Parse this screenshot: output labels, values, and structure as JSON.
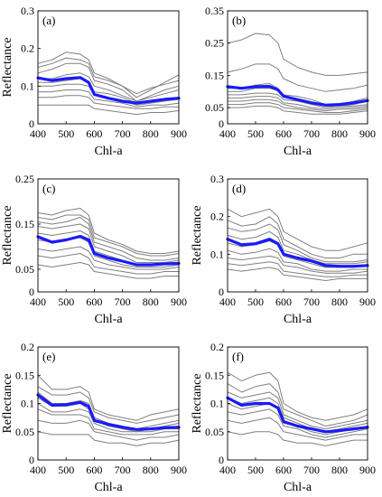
{
  "colors": {
    "individual": "#808080",
    "mean": "#1a1aff",
    "axes": "#000000"
  },
  "chart_data": [
    {
      "type": "line",
      "panel": "(a)",
      "xlabel": "Chl-a",
      "ylabel": "Reflectance",
      "xlim": [
        400,
        900
      ],
      "ylim": [
        0,
        0.3
      ],
      "xticks": [
        400,
        500,
        600,
        700,
        800,
        900
      ],
      "yticks": [
        0,
        0.1,
        0.2,
        0.3
      ],
      "ytick_labels": [
        "0",
        "0.1",
        "0.2",
        "0.3"
      ],
      "x": [
        400,
        450,
        500,
        550,
        580,
        600,
        650,
        700,
        750,
        800,
        850,
        900
      ],
      "gray_series": [
        [
          0.16,
          0.17,
          0.19,
          0.185,
          0.17,
          0.135,
          0.12,
          0.1,
          0.07,
          0.09,
          0.11,
          0.13
        ],
        [
          0.15,
          0.16,
          0.175,
          0.17,
          0.16,
          0.125,
          0.115,
          0.1,
          0.08,
          0.095,
          0.105,
          0.115
        ],
        [
          0.135,
          0.145,
          0.16,
          0.16,
          0.15,
          0.115,
          0.105,
          0.09,
          0.06,
          0.075,
          0.09,
          0.1
        ],
        [
          0.12,
          0.12,
          0.13,
          0.135,
          0.125,
          0.1,
          0.09,
          0.075,
          0.06,
          0.07,
          0.08,
          0.09
        ],
        [
          0.11,
          0.11,
          0.115,
          0.12,
          0.11,
          0.085,
          0.08,
          0.07,
          0.055,
          0.06,
          0.065,
          0.07
        ],
        [
          0.1,
          0.1,
          0.105,
          0.105,
          0.1,
          0.075,
          0.07,
          0.06,
          0.05,
          0.055,
          0.06,
          0.065
        ],
        [
          0.085,
          0.085,
          0.09,
          0.09,
          0.085,
          0.065,
          0.06,
          0.055,
          0.045,
          0.05,
          0.05,
          0.055
        ],
        [
          0.07,
          0.07,
          0.075,
          0.075,
          0.07,
          0.055,
          0.05,
          0.045,
          0.04,
          0.04,
          0.045,
          0.045
        ],
        [
          0.05,
          0.05,
          0.05,
          0.05,
          0.05,
          0.04,
          0.035,
          0.03,
          0.025,
          0.03,
          0.03,
          0.035
        ]
      ],
      "mean": [
        0.122,
        0.115,
        0.12,
        0.123,
        0.11,
        0.078,
        0.068,
        0.06,
        0.055,
        0.06,
        0.065,
        0.068
      ]
    },
    {
      "type": "line",
      "panel": "(b)",
      "xlabel": "Chl-a",
      "ylabel": "",
      "xlim": [
        400,
        900
      ],
      "ylim": [
        0,
        0.35
      ],
      "xticks": [
        400,
        500,
        600,
        700,
        800,
        900
      ],
      "yticks": [
        0,
        0.05,
        0.15,
        0.25,
        0.35
      ],
      "ytick_labels": [
        "0",
        "0.05",
        "0.15",
        "0.25",
        "0.35"
      ],
      "x": [
        400,
        450,
        500,
        550,
        580,
        600,
        650,
        700,
        750,
        800,
        850,
        900
      ],
      "gray_series": [
        [
          0.25,
          0.26,
          0.28,
          0.275,
          0.25,
          0.2,
          0.175,
          0.16,
          0.15,
          0.15,
          0.155,
          0.16
        ],
        [
          0.16,
          0.17,
          0.185,
          0.185,
          0.17,
          0.14,
          0.12,
          0.11,
          0.1,
          0.105,
          0.11,
          0.12
        ],
        [
          0.11,
          0.11,
          0.12,
          0.125,
          0.11,
          0.09,
          0.085,
          0.075,
          0.06,
          0.06,
          0.07,
          0.08
        ],
        [
          0.1,
          0.1,
          0.11,
          0.11,
          0.105,
          0.085,
          0.075,
          0.065,
          0.055,
          0.055,
          0.06,
          0.07
        ],
        [
          0.09,
          0.09,
          0.095,
          0.095,
          0.09,
          0.075,
          0.07,
          0.06,
          0.05,
          0.055,
          0.055,
          0.06
        ],
        [
          0.08,
          0.08,
          0.085,
          0.085,
          0.08,
          0.065,
          0.06,
          0.05,
          0.045,
          0.05,
          0.05,
          0.055
        ],
        [
          0.07,
          0.07,
          0.075,
          0.075,
          0.07,
          0.06,
          0.05,
          0.045,
          0.04,
          0.045,
          0.045,
          0.05
        ],
        [
          0.06,
          0.06,
          0.065,
          0.065,
          0.06,
          0.05,
          0.045,
          0.04,
          0.035,
          0.035,
          0.04,
          0.045
        ],
        [
          0.05,
          0.05,
          0.055,
          0.055,
          0.05,
          0.04,
          0.035,
          0.03,
          0.03,
          0.03,
          0.035,
          0.04
        ]
      ],
      "mean": [
        0.115,
        0.11,
        0.115,
        0.116,
        0.105,
        0.085,
        0.075,
        0.065,
        0.058,
        0.06,
        0.065,
        0.072
      ]
    },
    {
      "type": "line",
      "panel": "(c)",
      "xlabel": "Chl-a",
      "ylabel": "Reflectance",
      "xlim": [
        400,
        900
      ],
      "ylim": [
        0,
        0.25
      ],
      "xticks": [
        400,
        500,
        600,
        700,
        800,
        900
      ],
      "yticks": [
        0,
        0.05,
        0.15,
        0.25
      ],
      "ytick_labels": [
        "0",
        "0.05",
        "0.15",
        "0.25"
      ],
      "x": [
        400,
        450,
        500,
        550,
        580,
        600,
        650,
        700,
        750,
        800,
        850,
        900
      ],
      "gray_series": [
        [
          0.175,
          0.17,
          0.18,
          0.185,
          0.17,
          0.13,
          0.115,
          0.105,
          0.09,
          0.085,
          0.085,
          0.09
        ],
        [
          0.165,
          0.16,
          0.17,
          0.17,
          0.16,
          0.12,
          0.11,
          0.1,
          0.085,
          0.08,
          0.08,
          0.085
        ],
        [
          0.155,
          0.15,
          0.155,
          0.165,
          0.15,
          0.11,
          0.1,
          0.09,
          0.075,
          0.07,
          0.07,
          0.075
        ],
        [
          0.145,
          0.14,
          0.145,
          0.15,
          0.14,
          0.1,
          0.09,
          0.08,
          0.065,
          0.065,
          0.065,
          0.07
        ],
        [
          0.13,
          0.125,
          0.13,
          0.135,
          0.125,
          0.09,
          0.08,
          0.07,
          0.06,
          0.06,
          0.06,
          0.065
        ],
        [
          0.115,
          0.11,
          0.115,
          0.12,
          0.11,
          0.08,
          0.07,
          0.06,
          0.055,
          0.055,
          0.055,
          0.06
        ],
        [
          0.095,
          0.09,
          0.095,
          0.1,
          0.09,
          0.07,
          0.06,
          0.055,
          0.05,
          0.05,
          0.05,
          0.055
        ],
        [
          0.08,
          0.075,
          0.08,
          0.085,
          0.075,
          0.055,
          0.05,
          0.045,
          0.04,
          0.04,
          0.045,
          0.045
        ],
        [
          0.06,
          0.055,
          0.06,
          0.065,
          0.06,
          0.045,
          0.04,
          0.035,
          0.03,
          0.03,
          0.035,
          0.035
        ]
      ],
      "mean": [
        0.122,
        0.11,
        0.115,
        0.123,
        0.115,
        0.085,
        0.075,
        0.068,
        0.06,
        0.06,
        0.062,
        0.063
      ]
    },
    {
      "type": "line",
      "panel": "(d)",
      "xlabel": "Chl-a",
      "ylabel": "Reflectance",
      "xlim": [
        400,
        900
      ],
      "ylim": [
        0,
        0.3
      ],
      "xticks": [
        400,
        500,
        600,
        700,
        800,
        900
      ],
      "yticks": [
        0,
        0.1,
        0.2,
        0.3
      ],
      "ytick_labels": [
        "0",
        "0.1",
        "0.2",
        "0.3"
      ],
      "x": [
        400,
        450,
        500,
        550,
        580,
        600,
        650,
        700,
        750,
        800,
        850,
        900
      ],
      "gray_series": [
        [
          0.22,
          0.2,
          0.21,
          0.22,
          0.2,
          0.16,
          0.14,
          0.12,
          0.11,
          0.11,
          0.12,
          0.13
        ],
        [
          0.19,
          0.175,
          0.18,
          0.2,
          0.18,
          0.14,
          0.12,
          0.1,
          0.09,
          0.09,
          0.1,
          0.1
        ],
        [
          0.17,
          0.16,
          0.165,
          0.18,
          0.165,
          0.125,
          0.11,
          0.09,
          0.08,
          0.08,
          0.08,
          0.085
        ],
        [
          0.15,
          0.14,
          0.145,
          0.16,
          0.145,
          0.11,
          0.1,
          0.085,
          0.075,
          0.075,
          0.075,
          0.08
        ],
        [
          0.13,
          0.12,
          0.125,
          0.135,
          0.125,
          0.095,
          0.085,
          0.075,
          0.065,
          0.065,
          0.065,
          0.07
        ],
        [
          0.11,
          0.1,
          0.105,
          0.115,
          0.105,
          0.08,
          0.075,
          0.06,
          0.055,
          0.055,
          0.06,
          0.06
        ],
        [
          0.09,
          0.085,
          0.09,
          0.095,
          0.09,
          0.07,
          0.065,
          0.055,
          0.05,
          0.05,
          0.05,
          0.055
        ],
        [
          0.075,
          0.07,
          0.075,
          0.08,
          0.075,
          0.055,
          0.05,
          0.045,
          0.04,
          0.04,
          0.045,
          0.045
        ],
        [
          0.06,
          0.055,
          0.06,
          0.065,
          0.06,
          0.045,
          0.04,
          0.035,
          0.03,
          0.035,
          0.035,
          0.035
        ]
      ],
      "mean": [
        0.14,
        0.125,
        0.128,
        0.14,
        0.128,
        0.1,
        0.09,
        0.082,
        0.07,
        0.068,
        0.068,
        0.07
      ]
    },
    {
      "type": "line",
      "panel": "(e)",
      "xlabel": "Chl-a",
      "ylabel": "Reflectance",
      "xlim": [
        400,
        900
      ],
      "ylim": [
        0,
        0.2
      ],
      "xticks": [
        400,
        500,
        600,
        700,
        800,
        900
      ],
      "yticks": [
        0,
        0.05,
        0.1,
        0.15,
        0.2
      ],
      "ytick_labels": [
        "0",
        "0.05",
        "0.1",
        "0.15",
        "0.2"
      ],
      "x": [
        400,
        450,
        500,
        550,
        580,
        600,
        650,
        700,
        750,
        800,
        850,
        900
      ],
      "gray_series": [
        [
          0.15,
          0.125,
          0.125,
          0.13,
          0.12,
          0.09,
          0.08,
          0.075,
          0.07,
          0.08,
          0.085,
          0.09
        ],
        [
          0.13,
          0.115,
          0.115,
          0.12,
          0.11,
          0.085,
          0.075,
          0.07,
          0.065,
          0.07,
          0.075,
          0.08
        ],
        [
          0.12,
          0.1,
          0.1,
          0.105,
          0.1,
          0.075,
          0.065,
          0.06,
          0.055,
          0.06,
          0.065,
          0.07
        ],
        [
          0.11,
          0.095,
          0.095,
          0.1,
          0.09,
          0.07,
          0.06,
          0.055,
          0.05,
          0.055,
          0.06,
          0.065
        ],
        [
          0.1,
          0.085,
          0.085,
          0.09,
          0.085,
          0.065,
          0.055,
          0.05,
          0.05,
          0.05,
          0.055,
          0.055
        ],
        [
          0.09,
          0.08,
          0.08,
          0.08,
          0.075,
          0.055,
          0.05,
          0.045,
          0.045,
          0.045,
          0.05,
          0.05
        ],
        [
          0.07,
          0.065,
          0.065,
          0.07,
          0.065,
          0.05,
          0.045,
          0.04,
          0.035,
          0.04,
          0.04,
          0.045
        ],
        [
          0.05,
          0.045,
          0.045,
          0.045,
          0.045,
          0.035,
          0.03,
          0.03,
          0.025,
          0.03,
          0.03,
          0.035
        ]
      ],
      "mean": [
        0.115,
        0.097,
        0.098,
        0.102,
        0.095,
        0.07,
        0.063,
        0.058,
        0.054,
        0.055,
        0.057,
        0.058
      ]
    },
    {
      "type": "line",
      "panel": "(f)",
      "xlabel": "Chl-a",
      "ylabel": "Reflectance",
      "xlim": [
        400,
        900
      ],
      "ylim": [
        0,
        0.2
      ],
      "xticks": [
        400,
        500,
        600,
        700,
        800,
        900
      ],
      "yticks": [
        0,
        0.05,
        0.1,
        0.15,
        0.2
      ],
      "ytick_labels": [
        "0",
        "0.05",
        "0.1",
        "0.15",
        "0.2"
      ],
      "x": [
        400,
        450,
        500,
        550,
        580,
        600,
        650,
        700,
        750,
        800,
        850,
        900
      ],
      "gray_series": [
        [
          0.155,
          0.14,
          0.15,
          0.155,
          0.14,
          0.1,
          0.085,
          0.075,
          0.07,
          0.075,
          0.08,
          0.09
        ],
        [
          0.135,
          0.12,
          0.13,
          0.135,
          0.12,
          0.09,
          0.08,
          0.07,
          0.06,
          0.065,
          0.07,
          0.08
        ],
        [
          0.12,
          0.11,
          0.115,
          0.12,
          0.11,
          0.08,
          0.07,
          0.06,
          0.055,
          0.06,
          0.065,
          0.07
        ],
        [
          0.11,
          0.1,
          0.105,
          0.11,
          0.1,
          0.075,
          0.065,
          0.055,
          0.05,
          0.055,
          0.06,
          0.065
        ],
        [
          0.1,
          0.09,
          0.095,
          0.1,
          0.09,
          0.065,
          0.06,
          0.05,
          0.045,
          0.05,
          0.055,
          0.06
        ],
        [
          0.085,
          0.08,
          0.085,
          0.09,
          0.08,
          0.06,
          0.055,
          0.045,
          0.04,
          0.045,
          0.05,
          0.055
        ],
        [
          0.07,
          0.065,
          0.07,
          0.075,
          0.065,
          0.05,
          0.045,
          0.04,
          0.035,
          0.04,
          0.045,
          0.045
        ],
        [
          0.05,
          0.045,
          0.05,
          0.05,
          0.045,
          0.035,
          0.03,
          0.03,
          0.025,
          0.03,
          0.035,
          0.035
        ]
      ],
      "mean": [
        0.11,
        0.097,
        0.1,
        0.1,
        0.092,
        0.068,
        0.06,
        0.055,
        0.05,
        0.052,
        0.055,
        0.058
      ]
    }
  ]
}
